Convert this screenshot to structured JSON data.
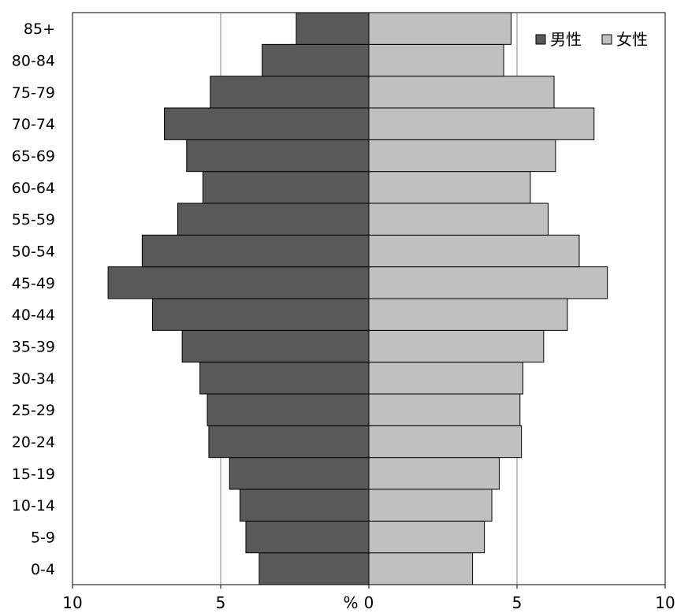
{
  "chart_data": {
    "type": "bar",
    "orientation": "horizontal",
    "layout": "population-pyramid",
    "categories": [
      "0-4",
      "5-9",
      "10-14",
      "15-19",
      "20-24",
      "25-29",
      "30-34",
      "35-39",
      "40-44",
      "45-49",
      "50-54",
      "55-59",
      "60-64",
      "65-69",
      "70-74",
      "75-79",
      "80-84",
      "85+"
    ],
    "series": [
      {
        "name": "男性",
        "side": "left",
        "color": "#595959",
        "values": [
          3.7,
          4.15,
          4.35,
          4.7,
          5.4,
          5.45,
          5.7,
          6.3,
          7.3,
          8.8,
          7.65,
          6.45,
          5.6,
          6.15,
          6.9,
          5.35,
          3.6,
          2.45
        ]
      },
      {
        "name": "女性",
        "side": "right",
        "color": "#c0c0c0",
        "values": [
          3.5,
          3.9,
          4.15,
          4.4,
          5.15,
          5.1,
          5.2,
          5.9,
          6.7,
          8.05,
          7.1,
          6.05,
          5.45,
          6.3,
          7.6,
          6.25,
          4.55,
          4.8
        ]
      }
    ],
    "x_ticks": [
      {
        "value": -10,
        "label": "10"
      },
      {
        "value": -5,
        "label": "5"
      },
      {
        "value": 0,
        "label": "0"
      },
      {
        "value": 5,
        "label": "5"
      },
      {
        "value": 10,
        "label": "10"
      }
    ],
    "xlim": [
      -10,
      10
    ],
    "unit_label": "%",
    "legend_position": "top-right",
    "grid": "vertical at ±5"
  }
}
